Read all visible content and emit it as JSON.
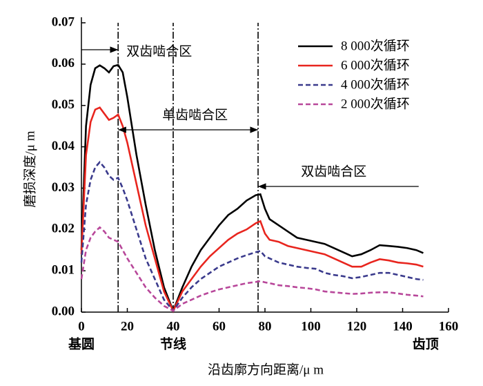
{
  "chart_data": {
    "type": "line",
    "xlabel": "沿齿廓方向距离/μ m",
    "ylabel": "磨损深度/μ m",
    "x": [
      0,
      2,
      4,
      6,
      8,
      10,
      12,
      14,
      16,
      18,
      20,
      24,
      28,
      32,
      36,
      40,
      44,
      48,
      52,
      56,
      60,
      64,
      68,
      72,
      76,
      78,
      80,
      82,
      86,
      90,
      94,
      98,
      102,
      106,
      110,
      114,
      118,
      122,
      126,
      130,
      134,
      138,
      142,
      146,
      149
    ],
    "series": [
      {
        "name": "8 000次循环",
        "color": "#000000",
        "style": "solid",
        "values": [
          0.015,
          0.045,
          0.055,
          0.059,
          0.0597,
          0.059,
          0.058,
          0.0595,
          0.0598,
          0.058,
          0.052,
          0.038,
          0.026,
          0.015,
          0.006,
          0.0003,
          0.006,
          0.011,
          0.015,
          0.018,
          0.021,
          0.0235,
          0.025,
          0.027,
          0.0283,
          0.0285,
          0.025,
          0.0225,
          0.021,
          0.0195,
          0.018,
          0.0175,
          0.017,
          0.0165,
          0.0155,
          0.0145,
          0.0135,
          0.014,
          0.015,
          0.0162,
          0.016,
          0.0158,
          0.0155,
          0.015,
          0.0143
        ]
      },
      {
        "name": "6 000次循环",
        "color": "#e8251e",
        "style": "solid",
        "values": [
          0.014,
          0.038,
          0.046,
          0.049,
          0.0495,
          0.048,
          0.0465,
          0.047,
          0.0478,
          0.045,
          0.041,
          0.031,
          0.021,
          0.013,
          0.005,
          0.0003,
          0.005,
          0.008,
          0.011,
          0.0135,
          0.0155,
          0.0175,
          0.019,
          0.02,
          0.0215,
          0.022,
          0.019,
          0.0175,
          0.017,
          0.016,
          0.0155,
          0.015,
          0.0145,
          0.014,
          0.013,
          0.012,
          0.011,
          0.011,
          0.012,
          0.0128,
          0.0125,
          0.012,
          0.0118,
          0.0115,
          0.011
        ]
      },
      {
        "name": "4 000次循环",
        "color": "#3a3a8c",
        "style": "dashed",
        "values": [
          0.012,
          0.026,
          0.032,
          0.035,
          0.0363,
          0.035,
          0.033,
          0.032,
          0.0325,
          0.03,
          0.027,
          0.02,
          0.013,
          0.008,
          0.003,
          0.0003,
          0.0035,
          0.006,
          0.008,
          0.0095,
          0.011,
          0.012,
          0.013,
          0.0138,
          0.0145,
          0.0148,
          0.0135,
          0.013,
          0.012,
          0.0115,
          0.011,
          0.0107,
          0.0105,
          0.0095,
          0.009,
          0.0087,
          0.0082,
          0.0085,
          0.009,
          0.0095,
          0.0095,
          0.009,
          0.0085,
          0.008,
          0.0078
        ]
      },
      {
        "name": "2 000次循环",
        "color": "#b8479a",
        "style": "dashed",
        "values": [
          0.008,
          0.015,
          0.018,
          0.0195,
          0.0205,
          0.0195,
          0.018,
          0.0175,
          0.017,
          0.015,
          0.013,
          0.0095,
          0.006,
          0.0035,
          0.0015,
          0.0003,
          0.002,
          0.003,
          0.004,
          0.0048,
          0.0055,
          0.006,
          0.0065,
          0.007,
          0.0073,
          0.0075,
          0.0072,
          0.007,
          0.0065,
          0.0063,
          0.006,
          0.0058,
          0.0055,
          0.005,
          0.0048,
          0.0046,
          0.0044,
          0.0045,
          0.0047,
          0.0048,
          0.0048,
          0.0045,
          0.0042,
          0.004,
          0.0038
        ]
      }
    ],
    "xlim": [
      0,
      160
    ],
    "xticks": [
      0,
      20,
      40,
      60,
      80,
      100,
      120,
      140,
      160
    ],
    "ylim": [
      0,
      0.07
    ],
    "yticks": [
      {
        "value": 0,
        "label": "0.00"
      },
      0.01,
      0.02,
      0.03,
      0.04,
      0.05,
      0.06,
      0.07
    ],
    "x_point_labels": [
      {
        "value": 0,
        "label": "基圆"
      },
      {
        "value": 40,
        "label": "节线"
      },
      {
        "value": 150,
        "label": "齿顶"
      }
    ],
    "vlines": [
      16,
      40,
      77
    ],
    "annotations": [
      "双齿啮合区",
      "单齿啮合区",
      "双齿啮合区"
    ],
    "legend": "upper right",
    "grid": false
  }
}
